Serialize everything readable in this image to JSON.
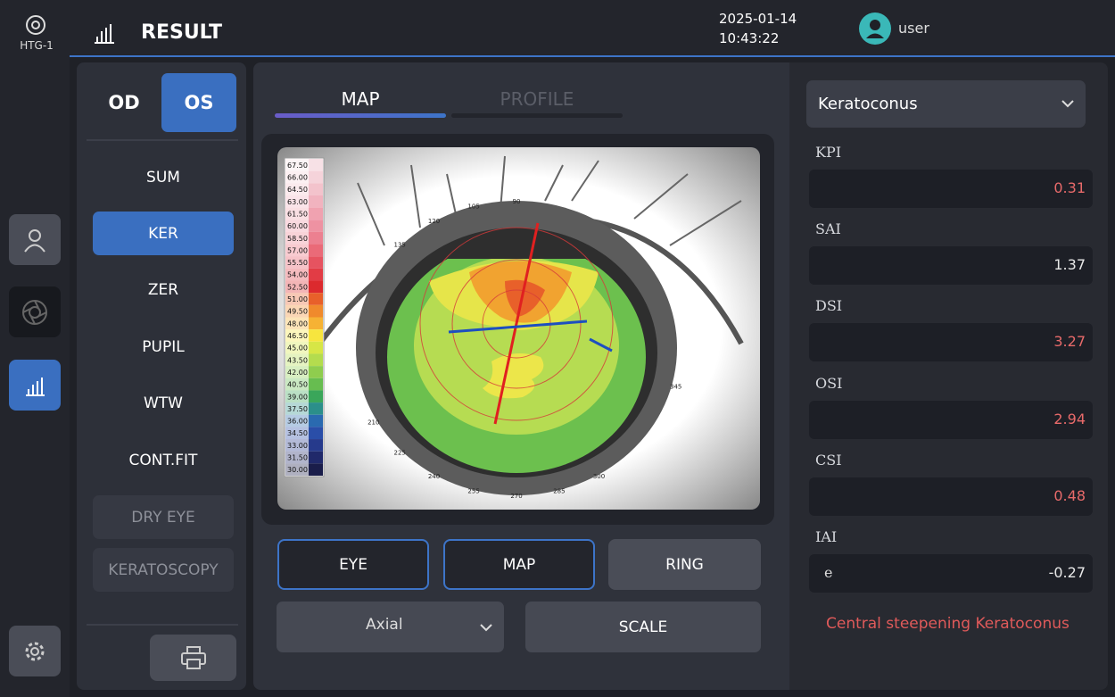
{
  "header": {
    "device": "HTG-1",
    "title": "RESULT",
    "date": "2025-01-14",
    "time": "10:43:22",
    "user": "user"
  },
  "eye_tabs": [
    {
      "label": "OD",
      "active": false
    },
    {
      "label": "OS",
      "active": true
    }
  ],
  "menu": [
    {
      "label": "SUM",
      "state": "normal"
    },
    {
      "label": "KER",
      "state": "active"
    },
    {
      "label": "ZER",
      "state": "normal"
    },
    {
      "label": "PUPIL",
      "state": "normal"
    },
    {
      "label": "WTW",
      "state": "normal"
    },
    {
      "label": "CONT.FIT",
      "state": "normal"
    },
    {
      "label": "DRY EYE",
      "state": "disabled"
    },
    {
      "label": "KERATOSCOPY",
      "state": "disabled"
    }
  ],
  "view_tabs": [
    {
      "label": "MAP",
      "active": true
    },
    {
      "label": "PROFILE",
      "active": false
    }
  ],
  "scale": [
    {
      "label": "67.50",
      "color": "#f7e1e6"
    },
    {
      "label": "66.00",
      "color": "#f5d3da"
    },
    {
      "label": "64.50",
      "color": "#f3c3cc"
    },
    {
      "label": "63.00",
      "color": "#f1b3bf"
    },
    {
      "label": "61.50",
      "color": "#f0a2b0"
    },
    {
      "label": "60.00",
      "color": "#ee92a2"
    },
    {
      "label": "58.50",
      "color": "#ec8090"
    },
    {
      "label": "57.00",
      "color": "#ea6a78"
    },
    {
      "label": "55.50",
      "color": "#e65360"
    },
    {
      "label": "54.00",
      "color": "#e23c45"
    },
    {
      "label": "52.50",
      "color": "#dc2a2e"
    },
    {
      "label": "51.00",
      "color": "#e8602a"
    },
    {
      "label": "49.50",
      "color": "#f08a2c"
    },
    {
      "label": "48.00",
      "color": "#f6b234"
    },
    {
      "label": "46.50",
      "color": "#f7e53e"
    },
    {
      "label": "45.00",
      "color": "#d7e646"
    },
    {
      "label": "43.50",
      "color": "#b4dc4e"
    },
    {
      "label": "42.00",
      "color": "#8fcd4e"
    },
    {
      "label": "40.50",
      "color": "#67bd50"
    },
    {
      "label": "39.00",
      "color": "#3aa65a"
    },
    {
      "label": "37.50",
      "color": "#2b8f8a"
    },
    {
      "label": "36.00",
      "color": "#2a6ab0"
    },
    {
      "label": "34.50",
      "color": "#2a4ea8"
    },
    {
      "label": "33.00",
      "color": "#263a8c"
    },
    {
      "label": "31.50",
      "color": "#20296a"
    },
    {
      "label": "30.00",
      "color": "#1a1d4a"
    }
  ],
  "angles": [
    90,
    105,
    120,
    135,
    210,
    225,
    240,
    255,
    270,
    285,
    300,
    345
  ],
  "buttons": [
    {
      "label": "EYE",
      "style": "outline"
    },
    {
      "label": "MAP",
      "style": "outline"
    },
    {
      "label": "RING",
      "style": "filled"
    }
  ],
  "map_type": "Axial",
  "scale_button": "SCALE",
  "diagnosis_select": "Keratoconus",
  "indices": [
    {
      "name": "KPI",
      "value": 0.31,
      "alert": true
    },
    {
      "name": "SAI",
      "value": 1.37,
      "alert": false
    },
    {
      "name": "DSI",
      "value": 3.27,
      "alert": true
    },
    {
      "name": "OSI",
      "value": 2.94,
      "alert": true
    },
    {
      "name": "CSI",
      "value": 0.48,
      "alert": true
    },
    {
      "name": "IAI",
      "prefix": "e",
      "value": -0.27,
      "alert": false
    }
  ],
  "diagnosis": "Central steepening Keratoconus"
}
